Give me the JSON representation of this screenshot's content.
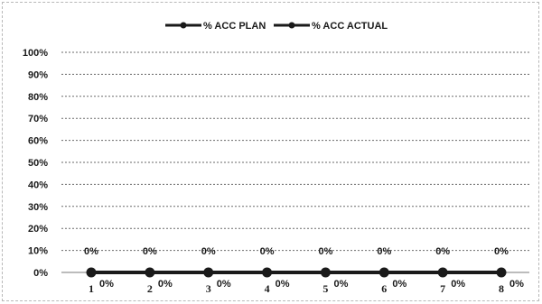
{
  "chart_data": {
    "type": "line",
    "categories": [
      "1",
      "2",
      "3",
      "4",
      "5",
      "6",
      "7",
      "8"
    ],
    "series": [
      {
        "name": "% ACC PLAN",
        "values": [
          0,
          0,
          0,
          0,
          0,
          0,
          0,
          0
        ],
        "labels": [
          "0%",
          "0%",
          "0%",
          "0%",
          "0%",
          "0%",
          "0%",
          "0%"
        ],
        "color": "#1a1a1a"
      },
      {
        "name": "% ACC ACTUAL",
        "values": [
          0,
          0,
          0,
          0,
          0,
          0,
          0,
          0
        ],
        "labels": [
          "0%",
          "0%",
          "0%",
          "0%",
          "0%",
          "0%",
          "0%",
          "0%"
        ],
        "color": "#1a1a1a"
      }
    ],
    "yticks": [
      "0%",
      "10%",
      "20%",
      "30%",
      "40%",
      "50%",
      "60%",
      "70%",
      "80%",
      "90%",
      "100%"
    ],
    "ylim": [
      0,
      100
    ],
    "grid": true,
    "legend_position": "top"
  }
}
